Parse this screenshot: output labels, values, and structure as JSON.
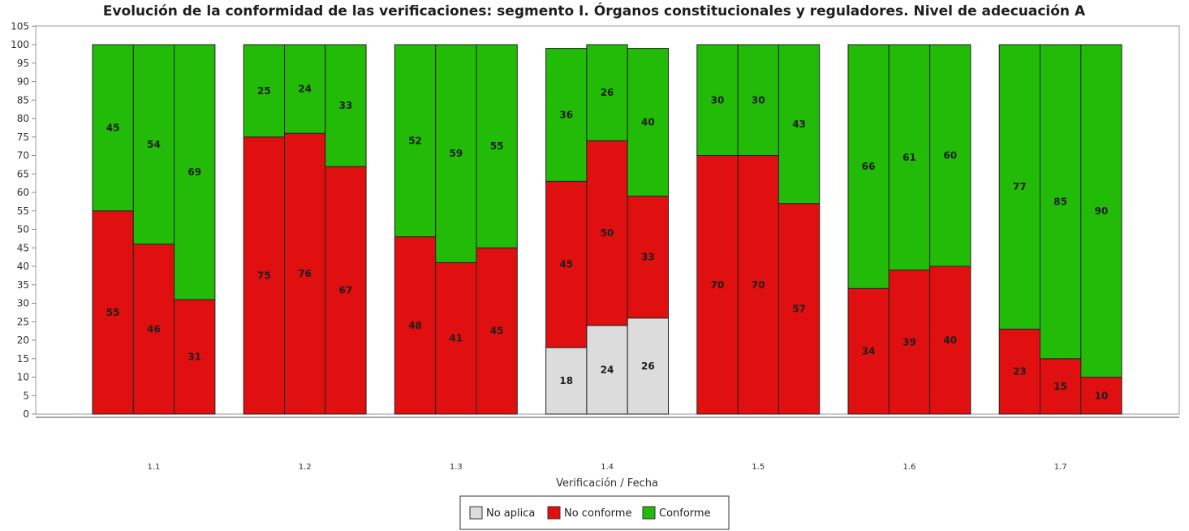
{
  "chart_data": {
    "type": "bar",
    "stacked": true,
    "title": "Evolución de la conformidad de las verificaciones: segmento I. Órganos constitucionales y reguladores. Nivel de adecuación A",
    "xlabel": "Verificación / Fecha",
    "ylabel": "",
    "ylim": [
      0,
      105
    ],
    "ytick_step": 5,
    "categories": [
      "1.1",
      "1.2",
      "1.3",
      "1.4",
      "1.5",
      "1.6",
      "1.7"
    ],
    "bars_per_category": 3,
    "legend": {
      "position": "bottom-center",
      "entries": [
        "No aplica",
        "No conforme",
        "Conforme"
      ]
    },
    "colors": {
      "No aplica": "#dcdcdc",
      "No conforme": "#e01010",
      "Conforme": "#22bb08"
    },
    "series": [
      {
        "name": "No aplica",
        "values": [
          [
            0,
            0,
            0
          ],
          [
            0,
            0,
            0
          ],
          [
            0,
            0,
            0
          ],
          [
            18,
            24,
            26
          ],
          [
            0,
            0,
            0
          ],
          [
            0,
            0,
            0
          ],
          [
            0,
            0,
            0
          ]
        ]
      },
      {
        "name": "No conforme",
        "values": [
          [
            55,
            46,
            31
          ],
          [
            75,
            76,
            67
          ],
          [
            48,
            41,
            45
          ],
          [
            45,
            50,
            33
          ],
          [
            70,
            70,
            57
          ],
          [
            34,
            39,
            40
          ],
          [
            23,
            15,
            10
          ]
        ]
      },
      {
        "name": "Conforme",
        "values": [
          [
            45,
            54,
            69
          ],
          [
            25,
            24,
            33
          ],
          [
            52,
            59,
            55
          ],
          [
            36,
            26,
            40
          ],
          [
            30,
            30,
            43
          ],
          [
            66,
            61,
            60
          ],
          [
            77,
            85,
            90
          ]
        ]
      }
    ],
    "grid": false
  }
}
